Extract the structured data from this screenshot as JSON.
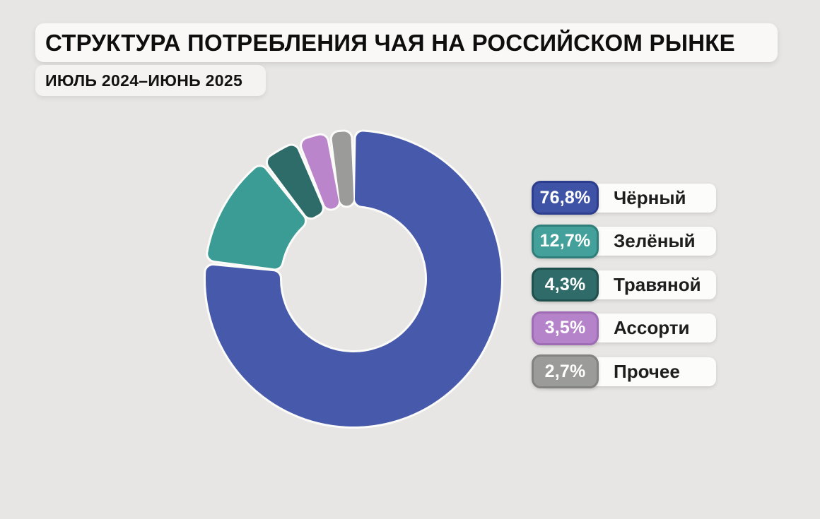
{
  "header": {
    "title": "СТРУКТУРА ПОТРЕБЛЕНИЯ ЧАЯ НА РОССИЙСКОМ РЫНКЕ",
    "period": "ИЮЛЬ 2024–ИЮНЬ 2025"
  },
  "chart_data": {
    "type": "pie",
    "subtype": "donut",
    "title": "СТРУКТУРА ПОТРЕБЛЕНИЯ ЧАЯ НА РОССИЙСКОМ РЫНКЕ",
    "subtitle": "ИЮЛЬ 2024–ИЮНЬ 2025",
    "categories": [
      "Чёрный",
      "Зелёный",
      "Травяной",
      "Ассорти",
      "Прочее"
    ],
    "values": [
      76.8,
      12.7,
      4.3,
      3.5,
      2.7
    ],
    "unit": "%",
    "colors": [
      "#4759aa",
      "#3a9c94",
      "#2d6c69",
      "#bb85cc",
      "#9b9b99"
    ],
    "start_angle_deg": 0,
    "direction": "clockwise",
    "inner_radius_ratio": 0.49,
    "segment_gap": true,
    "legend_position": "right"
  },
  "legend": {
    "items": [
      {
        "value": "76,8%",
        "label": "Чёрный",
        "color": "#3e53a6",
        "border": "#2c3d8d"
      },
      {
        "value": "12,7%",
        "label": "Зелёный",
        "color": "#43a09a",
        "border": "#2f7e79"
      },
      {
        "value": "4,3%",
        "label": "Травяной",
        "color": "#2f6b68",
        "border": "#1f504d"
      },
      {
        "value": "3,5%",
        "label": "Ассорти",
        "color": "#b583c9",
        "border": "#9d6cb4"
      },
      {
        "value": "2,7%",
        "label": "Прочее",
        "color": "#9b9b99",
        "border": "#828280"
      }
    ]
  },
  "colors": {
    "background": "#e7e6e4",
    "panel": "#f9f8f7",
    "pill": "#fcfcfb",
    "text_dark": "#0e0e0e",
    "badge_text": "#ffffff"
  }
}
